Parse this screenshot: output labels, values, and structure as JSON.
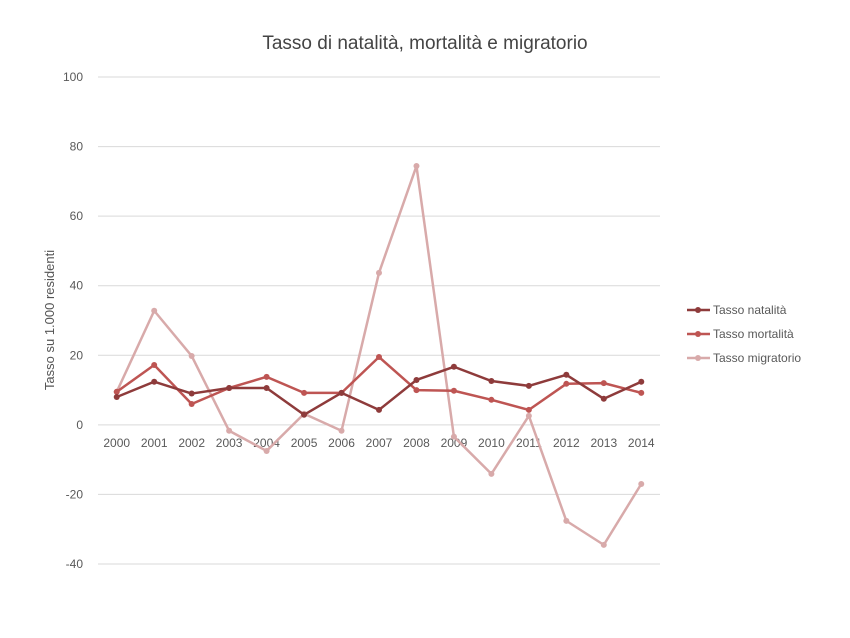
{
  "chart_data": {
    "type": "line",
    "title": "Tasso di natalità, mortalità e migratorio",
    "xlabel": "",
    "ylabel": "Tasso su 1.000 residenti",
    "ylim": [
      -40,
      100
    ],
    "yticks": [
      -40,
      -20,
      0,
      20,
      40,
      60,
      80,
      100
    ],
    "grid": true,
    "legend_position": "right",
    "categories": [
      "2000",
      "2001",
      "2002",
      "2003",
      "2004",
      "2005",
      "2006",
      "2007",
      "2008",
      "2009",
      "2010",
      "2011",
      "2012",
      "2013",
      "2014"
    ],
    "series": [
      {
        "name": "Tasso natalità",
        "color": "#8E3B3B",
        "values": [
          8.0,
          12.4,
          9.0,
          10.6,
          10.6,
          2.9,
          9.2,
          4.3,
          12.9,
          16.7,
          12.6,
          11.2,
          14.4,
          7.5,
          12.4
        ]
      },
      {
        "name": "Tasso mortalità",
        "color": "#BE5553",
        "values": [
          9.5,
          17.2,
          6.0,
          10.6,
          13.8,
          9.2,
          9.2,
          19.5,
          10.0,
          9.8,
          7.2,
          4.3,
          11.8,
          12.0,
          9.2
        ]
      },
      {
        "name": "Tasso migratorio",
        "color": "#D8AAAA",
        "values": [
          9.5,
          32.8,
          19.8,
          -1.7,
          -7.5,
          3.2,
          -1.7,
          43.7,
          74.4,
          -3.4,
          -14.1,
          2.6,
          -27.6,
          -34.5,
          -17.0
        ]
      }
    ]
  }
}
